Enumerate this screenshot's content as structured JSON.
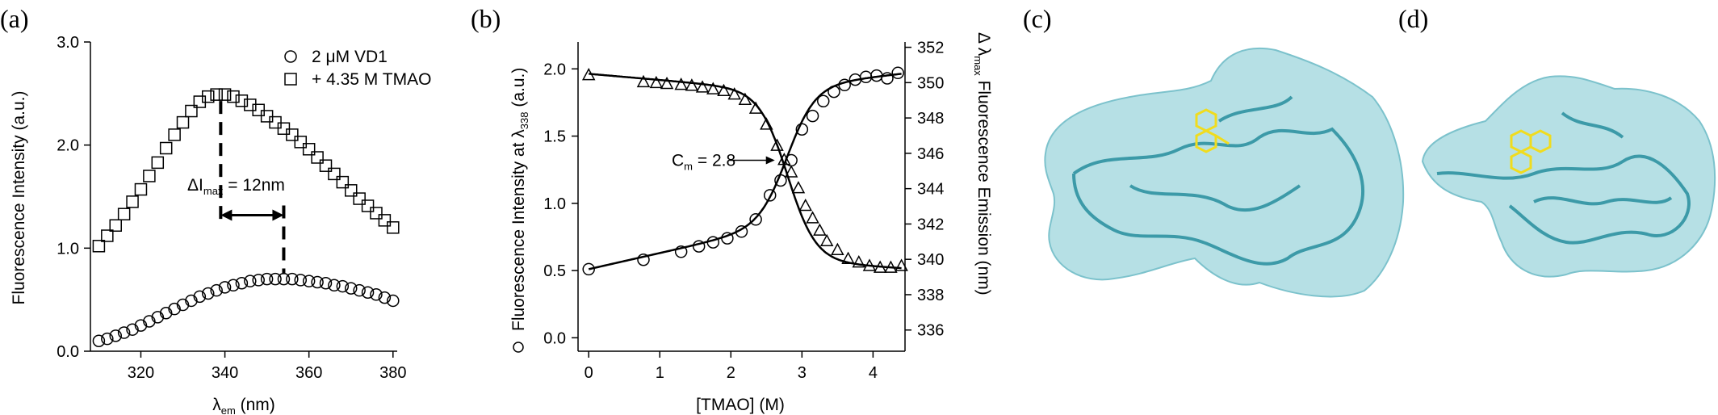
{
  "panels": {
    "a": {
      "label": "(a)"
    },
    "b": {
      "label": "(b)"
    },
    "c": {
      "label": "(c)"
    },
    "d": {
      "label": "(d)"
    }
  },
  "chart_data": [
    {
      "type": "scatter",
      "panel": "a",
      "xlabel": "λ",
      "xlabel_sub": "em",
      "xlabel_unit": " (nm)",
      "ylabel": "Fluorescence Intensity (a.u.)",
      "xlim": [
        308,
        381
      ],
      "ylim": [
        0.0,
        3.0
      ],
      "xticks": [
        320,
        340,
        360,
        380
      ],
      "yticks": [
        0.0,
        1.0,
        2.0,
        3.0
      ],
      "ytick_labels": [
        "0.0",
        "1.0",
        "2.0",
        "3.0"
      ],
      "legend": {
        "position": "top-right",
        "entries": [
          {
            "marker": "circle",
            "label": "2 μM VD1"
          },
          {
            "marker": "square",
            "label": "+ 4.35 M TMAO"
          }
        ]
      },
      "annotation": {
        "prefix": "ΔI",
        "sub": "max",
        "suffix": " = 12nm",
        "from_x": 339,
        "to_x": 354
      },
      "series": [
        {
          "name": "2 μM VD1",
          "marker": "circle",
          "x": [
            310,
            312,
            314,
            316,
            318,
            320,
            322,
            324,
            326,
            328,
            330,
            332,
            334,
            336,
            338,
            340,
            342,
            344,
            346,
            348,
            350,
            352,
            354,
            356,
            358,
            360,
            362,
            364,
            366,
            368,
            370,
            372,
            374,
            376,
            378,
            380
          ],
          "y": [
            0.1,
            0.12,
            0.15,
            0.18,
            0.21,
            0.25,
            0.29,
            0.33,
            0.37,
            0.41,
            0.45,
            0.49,
            0.53,
            0.56,
            0.59,
            0.62,
            0.64,
            0.66,
            0.68,
            0.69,
            0.7,
            0.7,
            0.7,
            0.7,
            0.69,
            0.68,
            0.67,
            0.66,
            0.64,
            0.63,
            0.61,
            0.59,
            0.57,
            0.55,
            0.52,
            0.49
          ]
        },
        {
          "name": "+ 4.35 M TMAO",
          "marker": "square",
          "x": [
            310,
            312,
            314,
            316,
            318,
            320,
            322,
            324,
            326,
            328,
            330,
            332,
            334,
            336,
            338,
            340,
            342,
            344,
            346,
            348,
            350,
            352,
            354,
            356,
            358,
            360,
            362,
            364,
            366,
            368,
            370,
            372,
            374,
            376,
            378,
            380
          ],
          "y": [
            1.02,
            1.12,
            1.22,
            1.33,
            1.45,
            1.57,
            1.7,
            1.83,
            1.97,
            2.1,
            2.22,
            2.33,
            2.42,
            2.47,
            2.49,
            2.49,
            2.47,
            2.43,
            2.39,
            2.34,
            2.28,
            2.22,
            2.16,
            2.1,
            2.03,
            1.96,
            1.88,
            1.8,
            1.72,
            1.64,
            1.56,
            1.48,
            1.41,
            1.34,
            1.27,
            1.2
          ]
        }
      ]
    },
    {
      "type": "scatter",
      "panel": "b",
      "xlabel": "[TMAO] (M)",
      "ylabel_left": "Fluorescence Intensity at λ",
      "ylabel_left_sub": "338",
      "ylabel_left_unit": " (a.u.)",
      "ylabel_right_sym": "Δ  λ",
      "ylabel_right_sub": "max",
      "ylabel_right_text": " Fluorescence Emission (nm)",
      "xlim": [
        -0.15,
        4.45
      ],
      "ylim_left": [
        -0.1,
        2.2
      ],
      "ylim_right": [
        334.8,
        352.3
      ],
      "xticks": [
        0,
        1,
        2,
        3,
        4
      ],
      "yticks_left": [
        0.0,
        0.5,
        1.0,
        1.5,
        2.0
      ],
      "yticks_left_labels": [
        "0.0",
        "0.5",
        "1.0",
        "1.5",
        "2.0"
      ],
      "yticks_right": [
        336,
        338,
        340,
        342,
        344,
        346,
        348,
        350,
        352
      ],
      "annotation": {
        "prefix": "C",
        "sub": "m",
        "suffix": " = 2.8"
      },
      "series": [
        {
          "name": "",
          "marker": "circle",
          "axis": "left",
          "x": [
            0,
            0.77,
            1.3,
            1.55,
            1.75,
            1.95,
            2.15,
            2.35,
            2.55,
            2.7,
            2.85,
            3.0,
            3.15,
            3.3,
            3.45,
            3.6,
            3.75,
            3.9,
            4.05,
            4.2,
            4.35
          ],
          "y": [
            0.51,
            0.58,
            0.64,
            0.68,
            0.71,
            0.74,
            0.79,
            0.88,
            1.06,
            1.17,
            1.32,
            1.55,
            1.65,
            1.76,
            1.83,
            1.88,
            1.92,
            1.94,
            1.95,
            1.93,
            1.97
          ]
        },
        {
          "name": "",
          "marker": "triangle",
          "axis": "right",
          "x": [
            0,
            0.77,
            0.95,
            1.1,
            1.3,
            1.45,
            1.6,
            1.75,
            1.9,
            2.05,
            2.2,
            2.35,
            2.5,
            2.65,
            2.75,
            2.85,
            2.95,
            3.05,
            3.15,
            3.25,
            3.35,
            3.5,
            3.65,
            3.8,
            3.95,
            4.1,
            4.25,
            4.4
          ],
          "y": [
            350.4,
            350.0,
            349.95,
            349.9,
            349.85,
            349.8,
            349.7,
            349.6,
            349.5,
            349.3,
            349.0,
            348.5,
            347.6,
            346.4,
            345.6,
            344.9,
            344.0,
            343.0,
            342.3,
            341.6,
            341.0,
            340.5,
            340.0,
            339.8,
            339.6,
            339.5,
            339.5,
            339.6
          ]
        }
      ]
    }
  ]
}
